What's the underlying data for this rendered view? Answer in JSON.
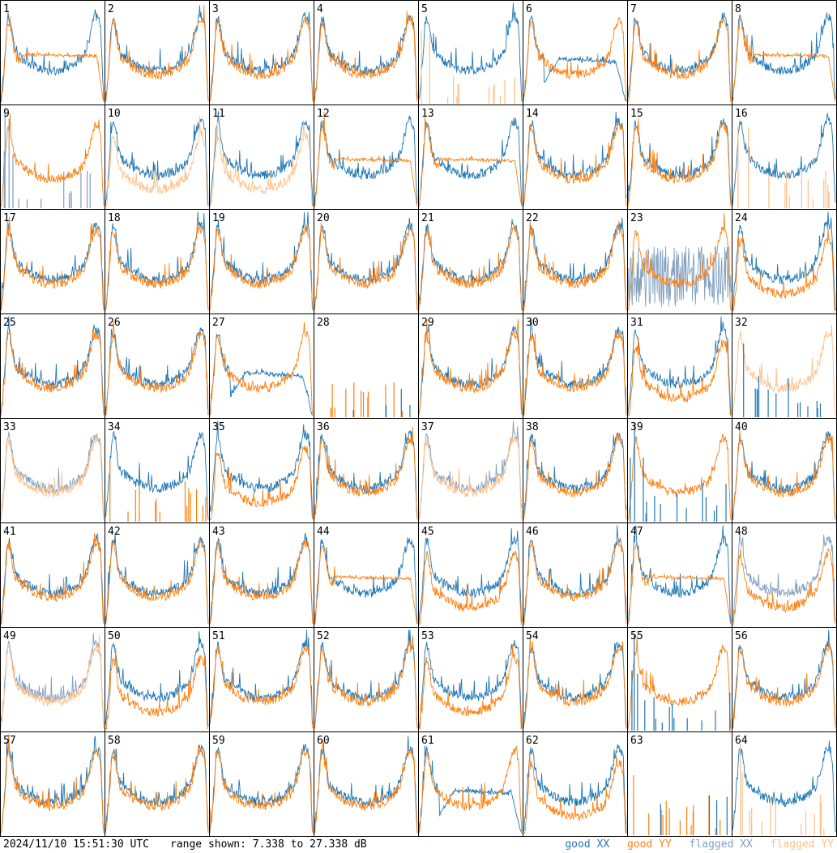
{
  "footer": {
    "timestamp": "2024/11/10 15:51:30 UTC",
    "range": "range shown: 7.338 to 27.338 dB"
  },
  "legend": {
    "good_xx": "good XX",
    "good_yy": "good YY",
    "flagged_xx": "flagged XX",
    "flagged_yy": "flagged YY"
  },
  "colors": {
    "good_xx": "#1f77b4",
    "good_yy": "#ff7f0e",
    "flagged_xx": "#7f9fbf",
    "flagged_yy": "#ffbf87"
  },
  "chart_data": {
    "type": "line",
    "layout": "8x8 small multiples",
    "y_unit": "dB",
    "ylim": [
      7.338,
      27.338
    ],
    "series_names": [
      "good XX",
      "good YY",
      "flagged XX",
      "flagged YY"
    ],
    "panels": [
      {
        "id": "1",
        "shape": "drop",
        "status": [
          "good",
          "good"
        ]
      },
      {
        "id": "2",
        "shape": "normal",
        "status": [
          "good",
          "good"
        ]
      },
      {
        "id": "3",
        "shape": "normal",
        "status": [
          "good",
          "good"
        ]
      },
      {
        "id": "4",
        "shape": "normal",
        "status": [
          "good",
          "good"
        ]
      },
      {
        "id": "5",
        "shape": "spikesY",
        "status": [
          "good",
          "flagged"
        ]
      },
      {
        "id": "6",
        "shape": "dropX",
        "status": [
          "good",
          "good"
        ]
      },
      {
        "id": "7",
        "shape": "normal",
        "status": [
          "good",
          "good"
        ]
      },
      {
        "id": "8",
        "shape": "drop",
        "status": [
          "good",
          "good"
        ]
      },
      {
        "id": "9",
        "shape": "spikesX",
        "status": [
          "flagged",
          "good"
        ]
      },
      {
        "id": "10",
        "shape": "offset",
        "status": [
          "good",
          "flagged"
        ]
      },
      {
        "id": "11",
        "shape": "offset",
        "status": [
          "good",
          "flagged"
        ]
      },
      {
        "id": "12",
        "shape": "drop",
        "status": [
          "good",
          "good"
        ]
      },
      {
        "id": "13",
        "shape": "drop",
        "status": [
          "good",
          "good"
        ]
      },
      {
        "id": "14",
        "shape": "normal",
        "status": [
          "good",
          "good"
        ]
      },
      {
        "id": "15",
        "shape": "normal",
        "status": [
          "good",
          "good"
        ]
      },
      {
        "id": "16",
        "shape": "spikesY",
        "status": [
          "good",
          "flagged"
        ]
      },
      {
        "id": "17",
        "shape": "normal",
        "status": [
          "good",
          "good"
        ]
      },
      {
        "id": "18",
        "shape": "normal",
        "status": [
          "good",
          "good"
        ]
      },
      {
        "id": "19",
        "shape": "normal",
        "status": [
          "good",
          "good"
        ]
      },
      {
        "id": "20",
        "shape": "normal",
        "status": [
          "good",
          "good"
        ]
      },
      {
        "id": "21",
        "shape": "normal",
        "status": [
          "good",
          "good"
        ]
      },
      {
        "id": "22",
        "shape": "normal",
        "status": [
          "good",
          "good"
        ]
      },
      {
        "id": "23",
        "shape": "noiseX",
        "status": [
          "flagged",
          "good"
        ]
      },
      {
        "id": "24",
        "shape": "offset",
        "status": [
          "good",
          "good"
        ]
      },
      {
        "id": "25",
        "shape": "normal",
        "status": [
          "good",
          "good"
        ]
      },
      {
        "id": "26",
        "shape": "normal",
        "status": [
          "good",
          "good"
        ]
      },
      {
        "id": "27",
        "shape": "dropX",
        "status": [
          "good",
          "good"
        ]
      },
      {
        "id": "28",
        "shape": "dead",
        "status": [
          "good",
          "good"
        ]
      },
      {
        "id": "29",
        "shape": "normal",
        "status": [
          "good",
          "good"
        ]
      },
      {
        "id": "30",
        "shape": "normal",
        "status": [
          "good",
          "good"
        ]
      },
      {
        "id": "31",
        "shape": "offset",
        "status": [
          "good",
          "good"
        ]
      },
      {
        "id": "32",
        "shape": "spikesX",
        "status": [
          "good",
          "flagged"
        ]
      },
      {
        "id": "33",
        "shape": "normal",
        "status": [
          "flagged",
          "flagged"
        ]
      },
      {
        "id": "34",
        "shape": "spikesY",
        "status": [
          "good",
          "good"
        ]
      },
      {
        "id": "35",
        "shape": "offset",
        "status": [
          "good",
          "good"
        ]
      },
      {
        "id": "36",
        "shape": "normal",
        "status": [
          "good",
          "good"
        ]
      },
      {
        "id": "37",
        "shape": "normal",
        "status": [
          "flagged",
          "flagged"
        ]
      },
      {
        "id": "38",
        "shape": "normal",
        "status": [
          "good",
          "good"
        ]
      },
      {
        "id": "39",
        "shape": "spikesX",
        "status": [
          "good",
          "good"
        ]
      },
      {
        "id": "40",
        "shape": "normal",
        "status": [
          "good",
          "good"
        ]
      },
      {
        "id": "41",
        "shape": "normal",
        "status": [
          "good",
          "good"
        ]
      },
      {
        "id": "42",
        "shape": "normal",
        "status": [
          "good",
          "good"
        ]
      },
      {
        "id": "43",
        "shape": "normal",
        "status": [
          "good",
          "good"
        ]
      },
      {
        "id": "44",
        "shape": "drop",
        "status": [
          "good",
          "good"
        ]
      },
      {
        "id": "45",
        "shape": "offset",
        "status": [
          "good",
          "good"
        ]
      },
      {
        "id": "46",
        "shape": "normal",
        "status": [
          "good",
          "good"
        ]
      },
      {
        "id": "47",
        "shape": "drop",
        "status": [
          "good",
          "good"
        ]
      },
      {
        "id": "48",
        "shape": "offset",
        "status": [
          "flagged",
          "good"
        ]
      },
      {
        "id": "49",
        "shape": "normal",
        "status": [
          "flagged",
          "flagged"
        ]
      },
      {
        "id": "50",
        "shape": "offset",
        "status": [
          "good",
          "good"
        ]
      },
      {
        "id": "51",
        "shape": "normal",
        "status": [
          "good",
          "good"
        ]
      },
      {
        "id": "52",
        "shape": "normal",
        "status": [
          "good",
          "good"
        ]
      },
      {
        "id": "53",
        "shape": "offset",
        "status": [
          "good",
          "good"
        ]
      },
      {
        "id": "54",
        "shape": "normal",
        "status": [
          "good",
          "good"
        ]
      },
      {
        "id": "55",
        "shape": "spikesX",
        "status": [
          "good",
          "good"
        ]
      },
      {
        "id": "56",
        "shape": "normal",
        "status": [
          "good",
          "good"
        ]
      },
      {
        "id": "57",
        "shape": "normal",
        "status": [
          "good",
          "good"
        ]
      },
      {
        "id": "58",
        "shape": "normal",
        "status": [
          "good",
          "good"
        ]
      },
      {
        "id": "59",
        "shape": "normal",
        "status": [
          "good",
          "good"
        ]
      },
      {
        "id": "60",
        "shape": "normal",
        "status": [
          "good",
          "good"
        ]
      },
      {
        "id": "61",
        "shape": "dropX",
        "status": [
          "good",
          "good"
        ]
      },
      {
        "id": "62",
        "shape": "offset",
        "status": [
          "good",
          "good"
        ]
      },
      {
        "id": "63",
        "shape": "dead",
        "status": [
          "good",
          "good"
        ]
      },
      {
        "id": "64",
        "shape": "spikesY",
        "status": [
          "good",
          "flagged"
        ]
      }
    ]
  }
}
